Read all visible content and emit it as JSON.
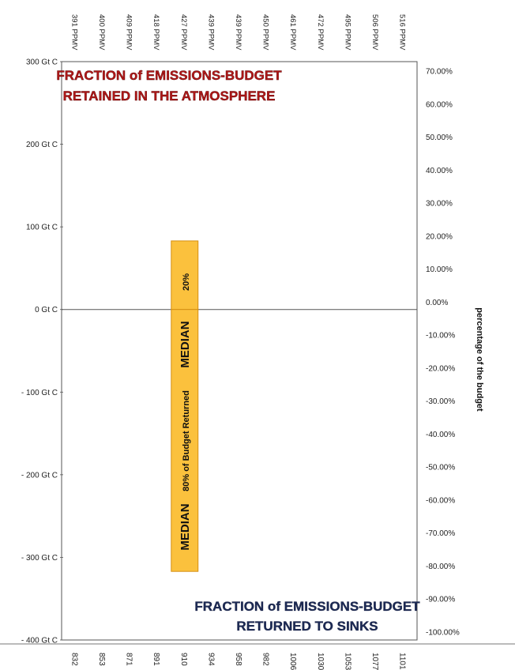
{
  "chart_data": {
    "type": "bar",
    "title_top": [
      "FRACTION of EMISSIONS-BUDGET",
      "RETAINED IN THE ATMOSPHERE"
    ],
    "title_bottom": [
      "FRACTION of EMISSIONS-BUDGET",
      "RETURNED TO SINKS"
    ],
    "y_left": {
      "ticks": [
        300,
        200,
        100,
        0,
        -100,
        -200,
        -300,
        -400
      ],
      "tick_labels": [
        "300 Gt C",
        "200 Gt C",
        "100 Gt C",
        "0 Gt C",
        "- 100 Gt C",
        "- 200 Gt C",
        "- 300 Gt C",
        "- 400 Gt C"
      ],
      "ylim": [
        -400,
        300
      ]
    },
    "y_right": {
      "label": "percentage of the budget",
      "ticks": [
        70,
        60,
        50,
        40,
        30,
        20,
        10,
        0,
        -10,
        -20,
        -30,
        -40,
        -50,
        -60,
        -70,
        -80,
        -90,
        -100
      ],
      "tick_labels": [
        "70.00%",
        "60.00%",
        "50.00%",
        "40.00%",
        "30.00%",
        "20.00%",
        "10.00%",
        "0.00%",
        "-10.00%",
        "-20.00%",
        "-30.00%",
        "-40.00%",
        "-50.00%",
        "-60.00%",
        "-70.00%",
        "-80.00%",
        "-90.00%",
        "-100.00%"
      ],
      "ylim": [
        -100,
        70
      ]
    },
    "x_top_labels": [
      "391 PPMV",
      "400 PPMV",
      "409 PPMV",
      "418 PPMV",
      "427 PPMV",
      "439 PPMV",
      "439 PPMV",
      "450 PPMV",
      "461 PPMV",
      "472 PPMV",
      "495 PPMV",
      "506 PPMV",
      "516 PPMV"
    ],
    "x_bottom_labels": [
      "832",
      "853",
      "871",
      "891",
      "910",
      "934",
      "958",
      "982",
      "1006",
      "1030",
      "1053",
      "1077",
      "1101"
    ],
    "bar": {
      "category_index": 4,
      "top_value": 83,
      "bottom_value": -317,
      "color": "#fbc13d",
      "edge_color": "#d58f12",
      "labels": {
        "retained_pct": "20%",
        "median_upper": "MEDIAN",
        "returned": "80% of Budget Returned",
        "median_lower": "MEDIAN"
      }
    }
  }
}
